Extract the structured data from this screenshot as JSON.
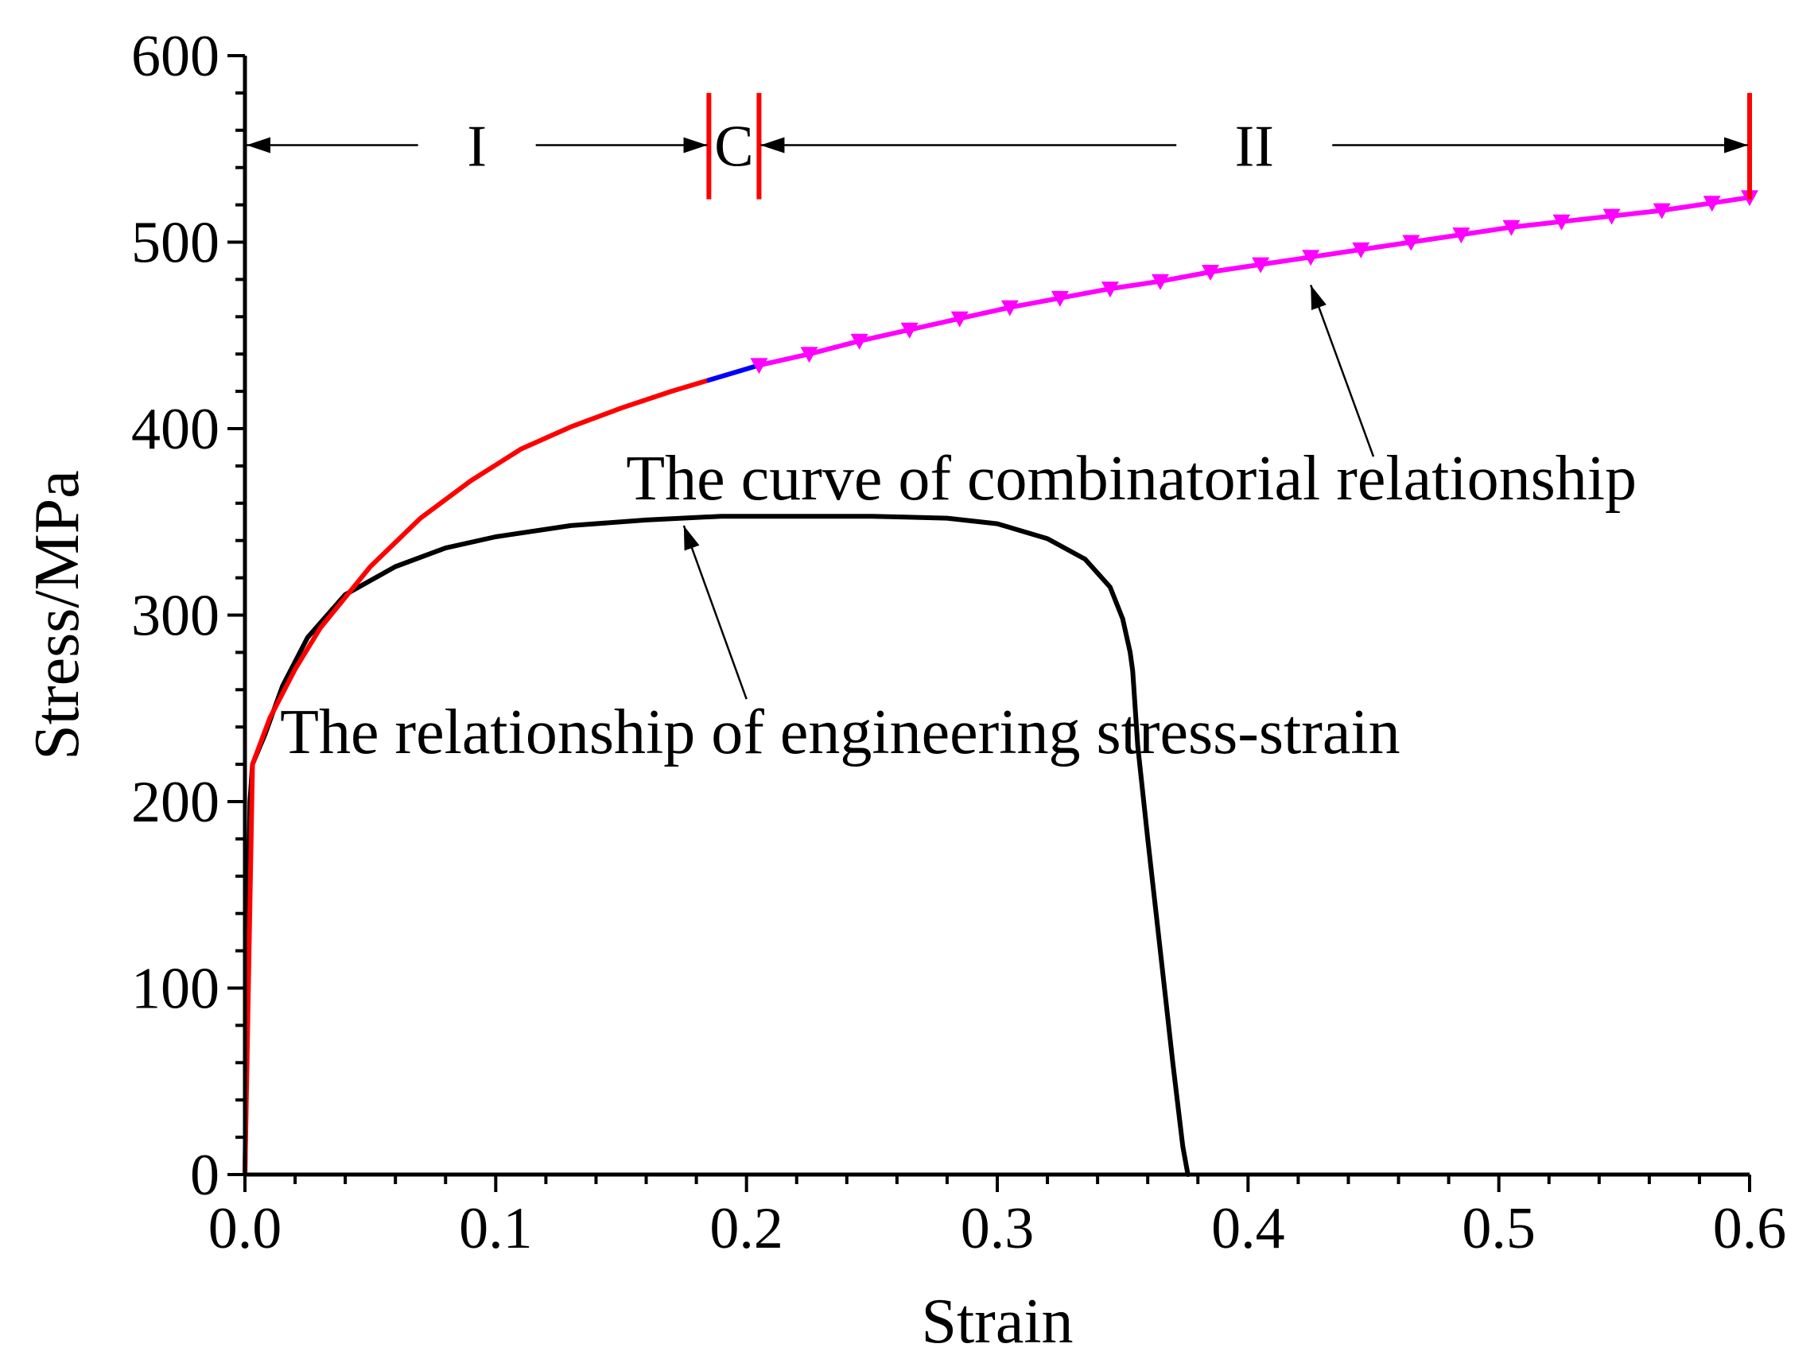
{
  "chart_data": {
    "type": "line",
    "title": "",
    "xlabel": "Strain",
    "ylabel": "Stress/MPa",
    "xlim": [
      0,
      0.6
    ],
    "ylim": [
      0,
      600
    ],
    "xticks": [
      0.0,
      0.1,
      0.2,
      0.3,
      0.4,
      0.5,
      0.6
    ],
    "xtick_labels": [
      "0.0",
      "0.1",
      "0.2",
      "0.3",
      "0.4",
      "0.5",
      "0.6"
    ],
    "yticks": [
      0,
      100,
      200,
      300,
      400,
      500,
      600
    ],
    "ytick_labels": [
      "0",
      "100",
      "200",
      "300",
      "400",
      "500",
      "600"
    ],
    "series": [
      {
        "name": "The relationship of engineering stress-strain",
        "color": "#000000",
        "marker": "none",
        "x": [
          0,
          0.002,
          0.003,
          0.008,
          0.015,
          0.025,
          0.04,
          0.06,
          0.08,
          0.1,
          0.13,
          0.16,
          0.19,
          0.22,
          0.25,
          0.28,
          0.3,
          0.32,
          0.335,
          0.345,
          0.35,
          0.353,
          0.354,
          0.356,
          0.36,
          0.365,
          0.37,
          0.374,
          0.376
        ],
        "y": [
          0,
          200,
          220,
          236,
          262,
          288,
          311,
          326,
          336,
          342,
          348,
          351,
          353,
          353,
          353,
          352,
          349,
          341,
          330,
          315,
          298,
          280,
          270,
          230,
          180,
          120,
          60,
          15,
          0
        ]
      },
      {
        "name": "The curve of combinatorial relationship (region I)",
        "color": "#ff0000",
        "marker": "none",
        "x": [
          0,
          0.003,
          0.01,
          0.02,
          0.03,
          0.05,
          0.07,
          0.09,
          0.11,
          0.13,
          0.15,
          0.17,
          0.185
        ],
        "y": [
          0,
          220,
          245,
          271,
          293,
          326,
          352,
          372,
          389,
          401,
          411,
          420,
          426
        ]
      },
      {
        "name": "The curve of combinatorial relationship (region C)",
        "color": "#0000ff",
        "marker": "none",
        "x": [
          0.185,
          0.195,
          0.205
        ],
        "y": [
          426,
          430,
          434
        ]
      },
      {
        "name": "The curve of combinatorial relationship (region II)",
        "color": "#ff00ff",
        "marker": "triangle-down",
        "x": [
          0.205,
          0.225,
          0.245,
          0.265,
          0.285,
          0.305,
          0.325,
          0.345,
          0.365,
          0.385,
          0.405,
          0.425,
          0.445,
          0.465,
          0.485,
          0.505,
          0.525,
          0.545,
          0.565,
          0.585,
          0.6
        ],
        "y": [
          434,
          440,
          447,
          453,
          459,
          465,
          470,
          475,
          479,
          484,
          488,
          492,
          496,
          500,
          504,
          508,
          511,
          514,
          517,
          521,
          524
        ]
      }
    ],
    "regions": [
      {
        "label": "I",
        "x_start": 0.0,
        "x_end": 0.185
      },
      {
        "label": "C",
        "x_start": 0.185,
        "x_end": 0.205
      },
      {
        "label": "II",
        "x_start": 0.205,
        "x_end": 0.6
      }
    ],
    "region_bound_color": "#ff0000",
    "region_arrow_y": 552,
    "annotations": [
      {
        "text": "The curve of combinatorial relationship",
        "text_x": 0.152,
        "text_y": 362,
        "arrow_from": [
          0.45,
          385
        ],
        "arrow_to": [
          0.425,
          477
        ]
      },
      {
        "text": "The relationship of engineering stress-strain",
        "text_x": 0.014,
        "text_y": 226,
        "arrow_from": [
          0.2,
          255
        ],
        "arrow_to": [
          0.175,
          348
        ]
      }
    ]
  }
}
